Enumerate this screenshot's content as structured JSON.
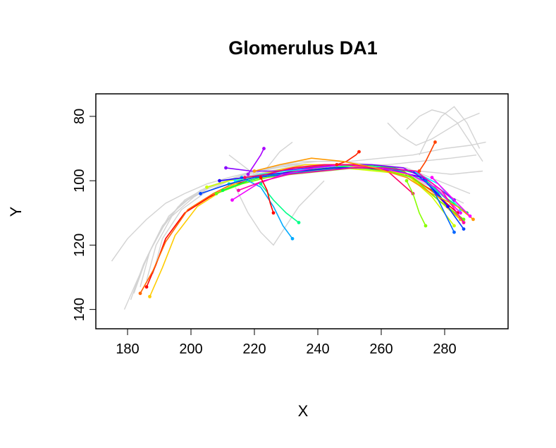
{
  "chart_data": {
    "type": "line",
    "title": "Glomerulus DA1",
    "xlabel": "X",
    "ylabel": "Y",
    "xlim": [
      170,
      300
    ],
    "ylim": [
      146,
      73
    ],
    "y_axis_inverted": true,
    "x_ticks": [
      180,
      200,
      220,
      240,
      260,
      280
    ],
    "y_ticks": [
      80,
      100,
      120,
      140
    ],
    "grid": false,
    "legend": "none",
    "background_color": "#d3d3d3",
    "background_traces": [
      {
        "x": [
          175,
          180,
          186,
          192,
          198,
          205,
          212,
          220,
          230,
          240,
          250,
          260,
          270,
          280,
          288,
          293
        ],
        "y": [
          125,
          118,
          112,
          107,
          104,
          101,
          99,
          97,
          95,
          94,
          94,
          93,
          92,
          90,
          89,
          88
        ]
      },
      {
        "x": [
          179,
          183,
          188,
          193,
          199,
          206,
          214,
          222,
          232,
          242,
          252,
          262,
          272,
          282,
          290
        ],
        "y": [
          140,
          131,
          120,
          111,
          106,
          102,
          99,
          97,
          95,
          95,
          95,
          95,
          94,
          93,
          92
        ]
      },
      {
        "x": [
          181,
          185,
          190,
          196,
          203,
          211,
          220,
          230,
          240,
          250,
          262,
          272,
          282,
          292
        ],
        "y": [
          137,
          126,
          116,
          108,
          103,
          100,
          97,
          95,
          95,
          96,
          96,
          97,
          98,
          97
        ]
      },
      {
        "x": [
          184,
          187,
          192,
          198,
          205,
          214,
          224,
          234,
          246,
          258,
          268,
          278,
          288
        ],
        "y": [
          133,
          122,
          113,
          106,
          102,
          99,
          96,
          94,
          94,
          95,
          96,
          100,
          104
        ]
      },
      {
        "x": [
          186,
          189,
          194,
          201,
          208,
          217,
          226,
          236,
          248,
          260,
          270,
          280,
          287
        ],
        "y": [
          131,
          120,
          111,
          105,
          101,
          98,
          96,
          95,
          95,
          97,
          99,
          104,
          110
        ]
      },
      {
        "x": [
          188,
          191,
          197,
          204,
          212,
          220,
          230,
          241,
          252,
          263,
          273,
          283
        ],
        "y": [
          129,
          118,
          109,
          104,
          100,
          98,
          96,
          95,
          96,
          97,
          100,
          106
        ]
      },
      {
        "x": [
          182,
          186,
          191,
          197,
          204,
          212,
          221,
          232,
          244,
          256,
          266,
          276,
          286
        ],
        "y": [
          135,
          124,
          114,
          107,
          103,
          100,
          98,
          96,
          96,
          96,
          98,
          102,
          107
        ]
      },
      {
        "x": [
          214,
          218,
          222,
          226,
          230,
          234,
          238,
          242
        ],
        "y": [
          102,
          110,
          116,
          120,
          114,
          108,
          104,
          100
        ]
      },
      {
        "x": [
          212,
          216,
          220,
          224,
          228,
          232
        ],
        "y": [
          92,
          95,
          98,
          96,
          91,
          88
        ]
      },
      {
        "x": [
          268,
          272,
          276,
          280,
          284,
          288,
          292
        ],
        "y": [
          84,
          80,
          78,
          79,
          82,
          88,
          94
        ]
      },
      {
        "x": [
          262,
          266,
          271,
          276,
          281,
          286,
          291
        ],
        "y": [
          82,
          86,
          89,
          87,
          84,
          81,
          79
        ]
      },
      {
        "x": [
          272,
          275,
          279,
          283,
          287,
          291
        ],
        "y": [
          92,
          86,
          80,
          77,
          82,
          90
        ]
      }
    ],
    "series": [
      {
        "color": "#ff0000",
        "x": [
          186,
          189,
          192,
          198,
          206,
          214,
          222,
          232,
          244,
          256,
          266,
          276,
          284
        ],
        "y": [
          133,
          126,
          118,
          110,
          105,
          101,
          99,
          97,
          96,
          96,
          97,
          103,
          110
        ]
      },
      {
        "color": "#ff6600",
        "x": [
          184,
          188,
          192,
          199,
          207,
          215,
          223,
          233,
          245,
          257,
          267,
          277,
          285
        ],
        "y": [
          135,
          128,
          119,
          109,
          104,
          100,
          98,
          96,
          95,
          96,
          97,
          104,
          112
        ]
      },
      {
        "color": "#ffcc00",
        "x": [
          187,
          191,
          195,
          202,
          210,
          218,
          226,
          236,
          248,
          258,
          268,
          278,
          286
        ],
        "y": [
          136,
          127,
          117,
          108,
          103,
          99,
          97,
          95,
          95,
          96,
          98,
          106,
          113
        ]
      },
      {
        "color": "#ccff00",
        "x": [
          205,
          212,
          220,
          228,
          238,
          248,
          258,
          268,
          276,
          283
        ],
        "y": [
          102,
          100,
          99,
          98,
          97,
          96,
          97,
          98,
          105,
          114
        ]
      },
      {
        "color": "#66ff00",
        "x": [
          208,
          216,
          224,
          232,
          242,
          252,
          262,
          270,
          278,
          286
        ],
        "y": [
          104,
          101,
          99,
          98,
          97,
          96,
          97,
          99,
          106,
          112
        ]
      },
      {
        "color": "#00ff44",
        "x": [
          210,
          218,
          226,
          234,
          244,
          254,
          264,
          272,
          280,
          287
        ],
        "y": [
          103,
          100,
          98,
          97,
          96,
          95,
          96,
          98,
          105,
          110
        ]
      },
      {
        "color": "#00ffaa",
        "x": [
          212,
          220,
          228,
          236,
          246,
          256,
          266,
          274,
          282
        ],
        "y": [
          101,
          99,
          98,
          97,
          96,
          96,
          97,
          100,
          107
        ]
      },
      {
        "color": "#00ffff",
        "x": [
          214,
          222,
          230,
          240,
          250,
          260,
          270,
          278,
          285
        ],
        "y": [
          100,
          98,
          97,
          96,
          95,
          96,
          97,
          101,
          109
        ]
      },
      {
        "color": "#00aaff",
        "x": [
          216,
          222,
          226,
          229,
          232
        ],
        "y": [
          99,
          102,
          108,
          114,
          118
        ]
      },
      {
        "color": "#0044ff",
        "x": [
          203,
          212,
          220,
          230,
          240,
          250,
          260,
          270,
          278,
          286
        ],
        "y": [
          104,
          101,
          99,
          98,
          97,
          96,
          96,
          97,
          104,
          115
        ]
      },
      {
        "color": "#2200ff",
        "x": [
          209,
          217,
          225,
          235,
          245,
          255,
          265,
          273,
          281
        ],
        "y": [
          100,
          99,
          98,
          97,
          96,
          96,
          97,
          99,
          108
        ]
      },
      {
        "color": "#8800ff",
        "x": [
          211,
          219,
          227,
          237,
          247,
          257,
          267,
          275,
          283
        ],
        "y": [
          96,
          97,
          97,
          96,
          95,
          95,
          96,
          100,
          106
        ]
      },
      {
        "color": "#ee00ff",
        "x": [
          213,
          221,
          229,
          239,
          249,
          259,
          269,
          277,
          285
        ],
        "y": [
          106,
          101,
          98,
          96,
          95,
          96,
          98,
          102,
          110
        ]
      },
      {
        "color": "#ff00aa",
        "x": [
          215,
          223,
          231,
          241,
          251,
          261,
          271,
          279,
          286
        ],
        "y": [
          103,
          100,
          98,
          97,
          96,
          96,
          97,
          103,
          113
        ]
      },
      {
        "color": "#ff0066",
        "x": [
          217,
          224,
          232,
          242,
          252,
          262,
          270
        ],
        "y": [
          99,
          98,
          96,
          95,
          95,
          97,
          104
        ]
      },
      {
        "color": "#ff2200",
        "x": [
          246,
          249,
          252,
          253
        ],
        "y": [
          95,
          94,
          92,
          91
        ]
      },
      {
        "color": "#ff9900",
        "x": [
          220,
          228,
          238,
          248,
          258,
          268,
          276,
          284,
          289
        ],
        "y": [
          97,
          95,
          93,
          94,
          96,
          99,
          104,
          108,
          112
        ]
      },
      {
        "color": "#00ff88",
        "x": [
          222,
          226,
          230,
          234
        ],
        "y": [
          101,
          106,
          110,
          113
        ]
      },
      {
        "color": "#aa00ff",
        "x": [
          218,
          220,
          222,
          223
        ],
        "y": [
          98,
          95,
          92,
          90
        ]
      },
      {
        "color": "#ff0000",
        "x": [
          222,
          224,
          225,
          226
        ],
        "y": [
          99,
          103,
          107,
          110
        ]
      },
      {
        "color": "#88ff00",
        "x": [
          268,
          270,
          272,
          274
        ],
        "y": [
          100,
          104,
          110,
          114
        ]
      },
      {
        "color": "#0066ff",
        "x": [
          274,
          277,
          279,
          281,
          283
        ],
        "y": [
          100,
          104,
          108,
          112,
          116
        ]
      },
      {
        "color": "#ff00ff",
        "x": [
          276,
          279,
          282,
          285,
          288
        ],
        "y": [
          99,
          102,
          105,
          108,
          111
        ]
      },
      {
        "color": "#ff4400",
        "x": [
          272,
          274,
          276,
          277
        ],
        "y": [
          97,
          94,
          90,
          88
        ]
      }
    ]
  }
}
